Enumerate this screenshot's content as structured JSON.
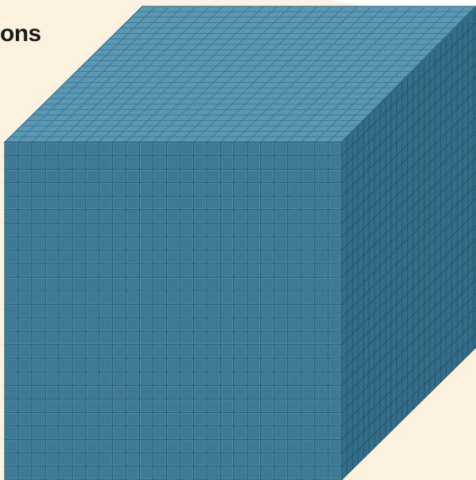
{
  "heading": {
    "text": "ons"
  },
  "cube": {
    "grid_cells_per_edge": 25,
    "colors": {
      "background_blob": "#fdf1e0",
      "front_face": "#3e7a96",
      "front_lines": "#2a5c74",
      "front_highlight": "#5e98b2",
      "top_face": "#5a98b4",
      "top_lines": "#3d7793",
      "side_face": "#346d88",
      "side_lines": "#24546b",
      "edge": "#2b6079"
    }
  }
}
